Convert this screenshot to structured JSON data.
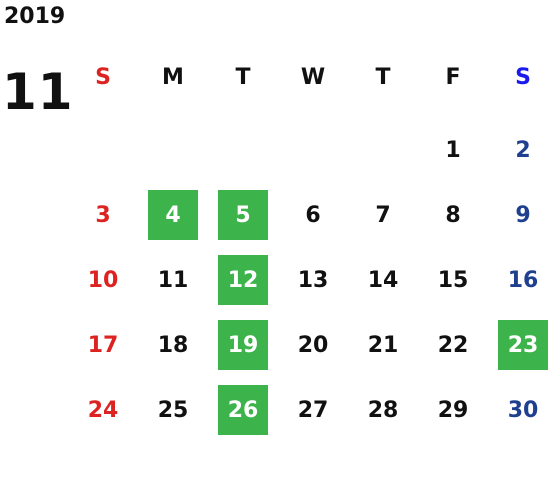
{
  "calendar": {
    "year": "2019",
    "month": "11",
    "weekdays": [
      "S",
      "M",
      "T",
      "W",
      "T",
      "F",
      "S"
    ],
    "colors": {
      "sunday": "#dd2222",
      "saturday": "#1f3f8f",
      "saturday_header": "#1a1aee",
      "highlight": "#3cb44b"
    },
    "weeks": [
      [
        "",
        "",
        "",
        "",
        "",
        "1",
        "2"
      ],
      [
        "3",
        "4",
        "5",
        "6",
        "7",
        "8",
        "9"
      ],
      [
        "10",
        "11",
        "12",
        "13",
        "14",
        "15",
        "16"
      ],
      [
        "17",
        "18",
        "19",
        "20",
        "21",
        "22",
        "23"
      ],
      [
        "24",
        "25",
        "26",
        "27",
        "28",
        "29",
        "30"
      ]
    ],
    "highlighted_days": [
      "4",
      "5",
      "12",
      "19",
      "23",
      "26"
    ]
  }
}
